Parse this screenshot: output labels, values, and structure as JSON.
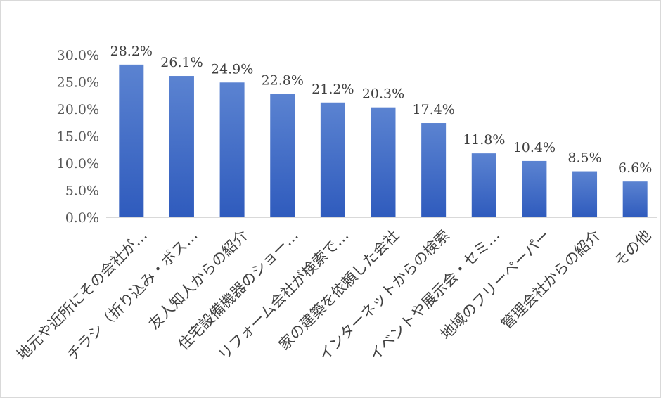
{
  "chart_data": {
    "type": "bar",
    "categories": [
      "地元や近所にその会社が…",
      "チラシ（折り込み・ポス…",
      "友人知人からの紹介",
      "住宅設備機器のショー…",
      "リフォーム会社が検索で…",
      "家の建築を依頼した会社",
      "インターネットからの検索",
      "イベントや展示会・セミ…",
      "地域のフリーペーパー",
      "管理会社からの紹介",
      "その他"
    ],
    "values": [
      28.2,
      26.1,
      24.9,
      22.8,
      21.2,
      20.3,
      17.4,
      11.8,
      10.4,
      8.5,
      6.6
    ],
    "data_labels": [
      "28.2%",
      "26.1%",
      "24.9%",
      "22.8%",
      "21.2%",
      "20.3%",
      "17.4%",
      "11.8%",
      "10.4%",
      "8.5%",
      "6.6%"
    ],
    "y_ticks": [
      0,
      5,
      10,
      15,
      20,
      25,
      30
    ],
    "y_tick_labels": [
      "0.0%",
      "5.0%",
      "10.0%",
      "15.0%",
      "20.0%",
      "25.0%",
      "30.0%"
    ],
    "ylim": [
      0,
      30
    ],
    "title": "",
    "xlabel": "",
    "ylabel": "",
    "grid": false,
    "legend": "none",
    "bar_gradient": [
      "#5b83d1",
      "#2f5bbd"
    ],
    "axis_color": "#d9d9d9"
  }
}
